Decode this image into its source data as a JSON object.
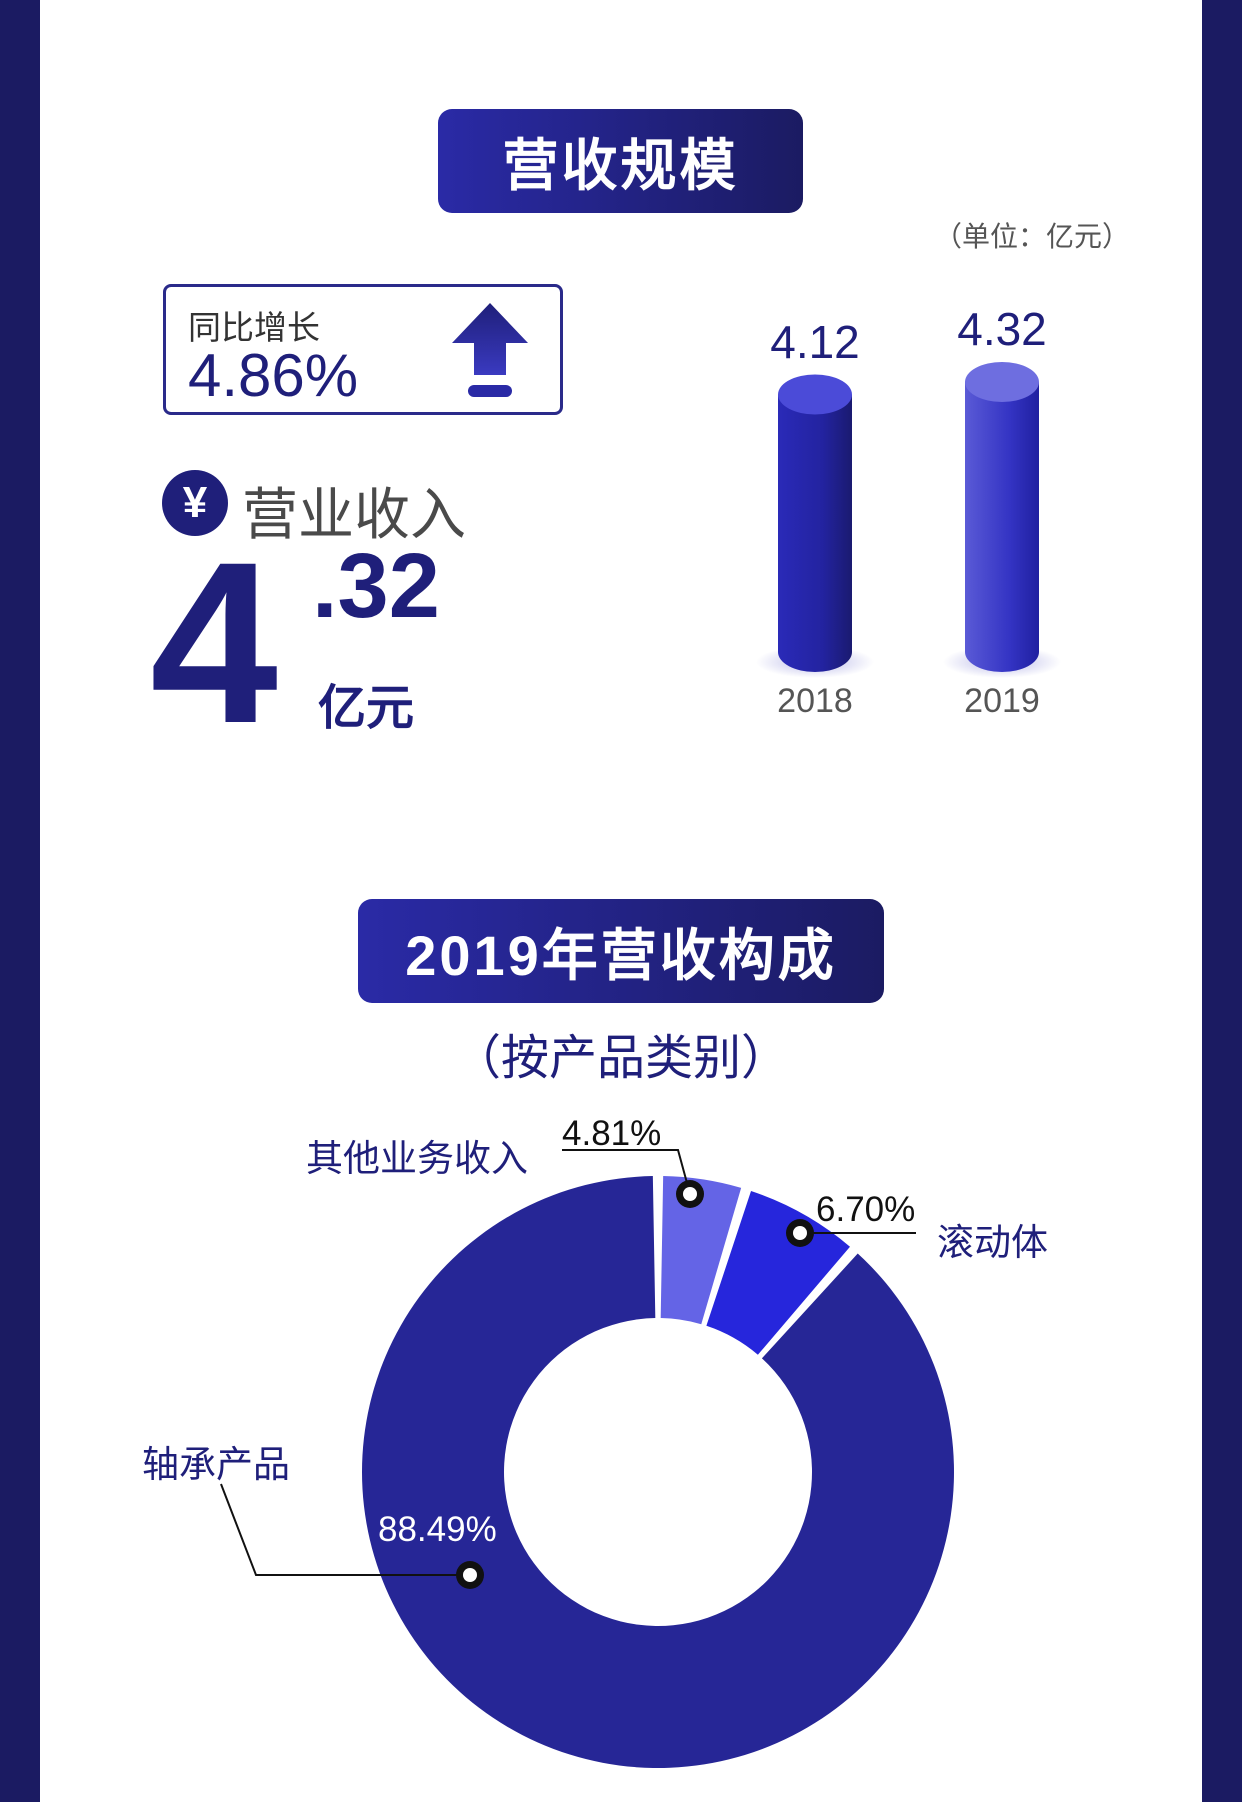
{
  "section1": {
    "title": "营收规模",
    "unit": "（单位：亿元）",
    "growth": {
      "label": "同比增长",
      "value": "4.86%"
    },
    "revenue": {
      "icon": "yen-icon",
      "icon_glyph": "¥",
      "label": "营业收入",
      "integer": "4",
      "decimal": ".32",
      "unit": "亿元"
    }
  },
  "section2": {
    "title": "2019年营收构成",
    "subtitle": "（按产品类别）"
  },
  "colors": {
    "navy": "#1b1b62",
    "primary": "#2a2aa6",
    "accent_blue": "#2626dc",
    "light_blue": "#6464e6"
  },
  "chart_data": [
    {
      "type": "bar",
      "categories": [
        "2018",
        "2019"
      ],
      "values": [
        4.12,
        4.32
      ],
      "value_labels": [
        "4.12",
        "4.32"
      ]
    },
    {
      "type": "pie",
      "donut": true,
      "slices": [
        {
          "name": "其他业务收入",
          "value": 4.81,
          "label": "4.81%",
          "color": "#6464e6"
        },
        {
          "name": "滚动体",
          "value": 6.7,
          "label": "6.70%",
          "color": "#2626dc"
        },
        {
          "name": "轴承产品",
          "value": 88.49,
          "label": "88.49%",
          "color": "#262696"
        }
      ]
    }
  ]
}
